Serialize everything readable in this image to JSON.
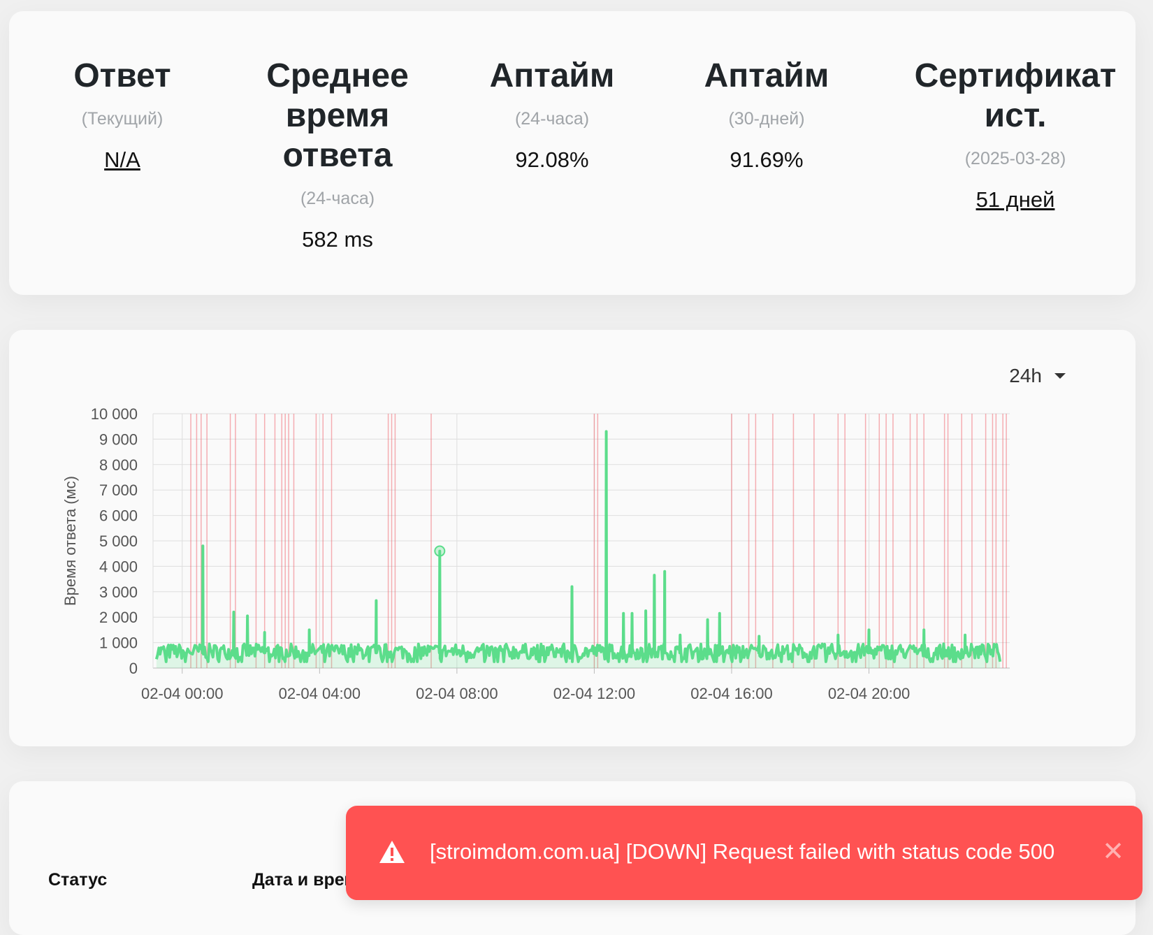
{
  "stats": [
    {
      "title": "Ответ",
      "sub": "(Текущий)",
      "value": "N/A",
      "link": true
    },
    {
      "title": "Среднее время ответа",
      "sub": "(24-часа)",
      "value": "582 ms",
      "link": false
    },
    {
      "title": "Аптайм",
      "sub": "(24-часа)",
      "value": "92.08%",
      "link": false
    },
    {
      "title": "Аптайм",
      "sub": "(30-дней)",
      "value": "91.69%",
      "link": false
    },
    {
      "title": "Сертификат ист.",
      "sub": "(2025-03-28)",
      "value": "51 дней",
      "link": true
    }
  ],
  "chart": {
    "range_label": "24h"
  },
  "chart_data": {
    "type": "line",
    "ylabel": "Время ответа (мс)",
    "ylim": [
      0,
      10000
    ],
    "y_ticks": [
      "0",
      "1 000",
      "2 000",
      "3 000",
      "4 000",
      "5 000",
      "6 000",
      "7 000",
      "8 000",
      "9 000",
      "10 000"
    ],
    "x_ticks": [
      "02-04 00:00",
      "02-04 04:00",
      "02-04 08:00",
      "02-04 12:00",
      "02-04 16:00",
      "02-04 20:00"
    ],
    "x_range_hours": [
      -0.85,
      24.1
    ],
    "series": [
      {
        "color": "#5cdd8b",
        "spikes": [
          {
            "h": 0.6,
            "v": 4800
          },
          {
            "h": 1.5,
            "v": 2200
          },
          {
            "h": 1.9,
            "v": 2050
          },
          {
            "h": 2.4,
            "v": 1400
          },
          {
            "h": 3.7,
            "v": 1500
          },
          {
            "h": 5.65,
            "v": 2650
          },
          {
            "h": 7.5,
            "v": 4600
          },
          {
            "h": 11.35,
            "v": 3200
          },
          {
            "h": 12.35,
            "v": 9300
          },
          {
            "h": 12.85,
            "v": 2150
          },
          {
            "h": 13.1,
            "v": 2150
          },
          {
            "h": 13.5,
            "v": 2250
          },
          {
            "h": 13.75,
            "v": 3650
          },
          {
            "h": 14.05,
            "v": 3800
          },
          {
            "h": 14.5,
            "v": 1300
          },
          {
            "h": 15.3,
            "v": 1900
          },
          {
            "h": 15.65,
            "v": 2150
          },
          {
            "h": 16.8,
            "v": 1250
          },
          {
            "h": 19.1,
            "v": 1300
          },
          {
            "h": 20.0,
            "v": 1500
          },
          {
            "h": 21.6,
            "v": 1500
          },
          {
            "h": 22.8,
            "v": 1300
          }
        ],
        "base_low": 350,
        "base_high": 950
      }
    ],
    "down_markers_hours": [
      0.25,
      0.42,
      0.55,
      0.72,
      1.4,
      1.55,
      2.15,
      2.4,
      2.7,
      2.9,
      3.0,
      3.1,
      3.25,
      3.9,
      4.1,
      4.35,
      6.0,
      6.1,
      6.2,
      7.25,
      12.0,
      12.1,
      16.0,
      16.5,
      16.7,
      17.2,
      17.8,
      18.4,
      19.1,
      19.3,
      19.9,
      20.3,
      20.5,
      20.7,
      21.2,
      21.4,
      21.6,
      22.2,
      22.3,
      22.7,
      23.0,
      23.4,
      23.6,
      23.7,
      23.9,
      24.0
    ],
    "highlight_point": {
      "h": 7.5,
      "v": 4600
    }
  },
  "events_table": {
    "headers": [
      "Статус",
      "Дата и время"
    ]
  },
  "toast": {
    "message": "[stroimdom.com.ua] [DOWN] Request failed with status code 500",
    "close": "✕",
    "background": "#ff5252"
  }
}
